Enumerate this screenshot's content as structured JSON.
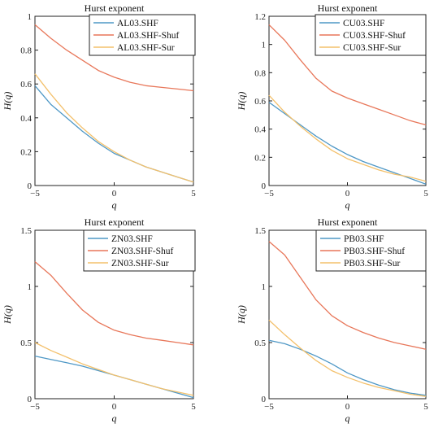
{
  "colors": {
    "series": [
      "#4f98c6",
      "#e8775a",
      "#f3c06b"
    ],
    "axis": "#222222",
    "legend_border": "#222222"
  },
  "chart_data": [
    {
      "type": "line",
      "title": "Hurst exponent",
      "xlabel": "q",
      "ylabel": "H(q)",
      "xlim": [
        -5,
        5
      ],
      "ylim": [
        0,
        1
      ],
      "xticks": [
        "−5",
        "0",
        "5"
      ],
      "yticks": [
        "0",
        "0.2",
        "0.4",
        "0.6",
        "0.8",
        "1"
      ],
      "ytick_values": [
        0,
        0.2,
        0.4,
        0.6,
        0.8,
        1
      ],
      "legend_position": "top-right",
      "x": [
        -5,
        -4,
        -3,
        -2,
        -1,
        0,
        1,
        2,
        3,
        4,
        5
      ],
      "series": [
        {
          "name": "AL03.SHF",
          "values": [
            0.59,
            0.48,
            0.4,
            0.32,
            0.25,
            0.19,
            0.15,
            0.11,
            0.08,
            0.05,
            0.02
          ]
        },
        {
          "name": "AL03.SHF-Shuf",
          "values": [
            0.95,
            0.87,
            0.8,
            0.74,
            0.68,
            0.64,
            0.61,
            0.59,
            0.58,
            0.57,
            0.56
          ]
        },
        {
          "name": "AL03.SHF-Sur",
          "values": [
            0.66,
            0.54,
            0.43,
            0.34,
            0.26,
            0.2,
            0.15,
            0.11,
            0.08,
            0.05,
            0.02
          ]
        }
      ]
    },
    {
      "type": "line",
      "title": "Hurst exponent",
      "xlabel": "q",
      "ylabel": "H(q)",
      "xlim": [
        -5,
        5
      ],
      "ylim": [
        0,
        1.2
      ],
      "xticks": [
        "−5",
        "0",
        "5"
      ],
      "yticks": [
        "0",
        "0.2",
        "0.4",
        "0.6",
        "0.8",
        "1",
        "1.2"
      ],
      "ytick_values": [
        0,
        0.2,
        0.4,
        0.6,
        0.8,
        1,
        1.2
      ],
      "legend_position": "top-right",
      "x": [
        -5,
        -4,
        -3,
        -2,
        -1,
        0,
        1,
        2,
        3,
        4,
        5
      ],
      "series": [
        {
          "name": "CU03.SHF",
          "values": [
            0.59,
            0.51,
            0.43,
            0.35,
            0.28,
            0.22,
            0.17,
            0.13,
            0.09,
            0.05,
            0.01
          ]
        },
        {
          "name": "CU03.SHF-Shuf",
          "values": [
            1.14,
            1.03,
            0.89,
            0.76,
            0.67,
            0.62,
            0.58,
            0.54,
            0.5,
            0.46,
            0.43
          ]
        },
        {
          "name": "CU03.SHF-Sur",
          "values": [
            0.64,
            0.52,
            0.42,
            0.33,
            0.25,
            0.19,
            0.15,
            0.11,
            0.08,
            0.06,
            0.03
          ]
        }
      ]
    },
    {
      "type": "line",
      "title": "Hurst exponent",
      "xlabel": "q",
      "ylabel": "H(q)",
      "xlim": [
        -5,
        5
      ],
      "ylim": [
        0,
        1.5
      ],
      "xticks": [
        "−5",
        "0",
        "5"
      ],
      "yticks": [
        "0",
        "0.5",
        "1",
        "1.5"
      ],
      "ytick_values": [
        0,
        0.5,
        1,
        1.5
      ],
      "legend_position": "top-right",
      "x": [
        -5,
        -4,
        -3,
        -2,
        -1,
        0,
        1,
        2,
        3,
        4,
        5
      ],
      "series": [
        {
          "name": "ZN03.SHF",
          "values": [
            0.38,
            0.35,
            0.32,
            0.29,
            0.25,
            0.21,
            0.17,
            0.13,
            0.09,
            0.05,
            0.01
          ]
        },
        {
          "name": "ZN03.SHF-Shuf",
          "values": [
            1.22,
            1.1,
            0.94,
            0.79,
            0.68,
            0.61,
            0.57,
            0.54,
            0.52,
            0.5,
            0.48
          ]
        },
        {
          "name": "ZN03.SHF-Sur",
          "values": [
            0.5,
            0.43,
            0.37,
            0.31,
            0.26,
            0.21,
            0.17,
            0.13,
            0.09,
            0.06,
            0.03
          ]
        }
      ]
    },
    {
      "type": "line",
      "title": "Hurst exponent",
      "xlabel": "q",
      "ylabel": "H(q)",
      "xlim": [
        -5,
        5
      ],
      "ylim": [
        0,
        1.5
      ],
      "xticks": [
        "−5",
        "0",
        "5"
      ],
      "yticks": [
        "0",
        "0.5",
        "1",
        "1.5"
      ],
      "ytick_values": [
        0,
        0.5,
        1,
        1.5
      ],
      "legend_position": "top-right",
      "x": [
        -5,
        -4,
        -3,
        -2,
        -1,
        0,
        1,
        2,
        3,
        4,
        5
      ],
      "series": [
        {
          "name": "PB03.SHF",
          "values": [
            0.52,
            0.49,
            0.44,
            0.38,
            0.31,
            0.23,
            0.17,
            0.12,
            0.08,
            0.05,
            0.03
          ]
        },
        {
          "name": "PB03.SHF-Shuf",
          "values": [
            1.4,
            1.28,
            1.08,
            0.88,
            0.74,
            0.65,
            0.59,
            0.54,
            0.5,
            0.47,
            0.44
          ]
        },
        {
          "name": "PB03.SHF-Sur",
          "values": [
            0.7,
            0.57,
            0.45,
            0.34,
            0.25,
            0.19,
            0.14,
            0.1,
            0.07,
            0.04,
            0.02
          ]
        }
      ]
    }
  ]
}
